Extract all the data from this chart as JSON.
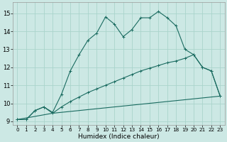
{
  "xlabel": "Humidex (Indice chaleur)",
  "background_color": "#cce8e4",
  "grid_color": "#aad4cc",
  "line_color": "#1a6b60",
  "xlim": [
    -0.5,
    23.5
  ],
  "ylim": [
    8.8,
    15.6
  ],
  "yticks": [
    9,
    10,
    11,
    12,
    13,
    14,
    15
  ],
  "xticks": [
    0,
    1,
    2,
    3,
    4,
    5,
    6,
    7,
    8,
    9,
    10,
    11,
    12,
    13,
    14,
    15,
    16,
    17,
    18,
    19,
    20,
    21,
    22,
    23
  ],
  "series1_x": [
    0,
    1,
    2,
    3,
    4,
    5,
    6,
    7,
    8,
    9,
    10,
    11,
    12,
    13,
    14,
    15,
    16,
    17,
    18,
    19,
    20,
    21,
    22,
    23
  ],
  "series1_y": [
    9.1,
    9.1,
    9.6,
    9.8,
    9.5,
    10.5,
    11.8,
    12.7,
    13.5,
    13.9,
    14.8,
    14.4,
    13.7,
    14.1,
    14.75,
    14.75,
    15.1,
    14.75,
    14.3,
    13.0,
    12.7,
    12.0,
    11.8,
    10.4
  ],
  "series2_x": [
    0,
    1,
    2,
    3,
    4,
    5,
    6,
    7,
    8,
    9,
    10,
    11,
    12,
    13,
    14,
    15,
    16,
    17,
    18,
    19,
    20,
    21,
    22,
    23
  ],
  "series2_y": [
    9.1,
    9.1,
    9.6,
    9.8,
    9.45,
    9.8,
    10.1,
    10.35,
    10.6,
    10.8,
    11.0,
    11.2,
    11.4,
    11.6,
    11.8,
    11.95,
    12.1,
    12.25,
    12.35,
    12.5,
    12.7,
    12.0,
    11.8,
    10.4
  ],
  "series3_x": [
    0,
    4,
    23
  ],
  "series3_y": [
    9.1,
    9.45,
    10.4
  ]
}
